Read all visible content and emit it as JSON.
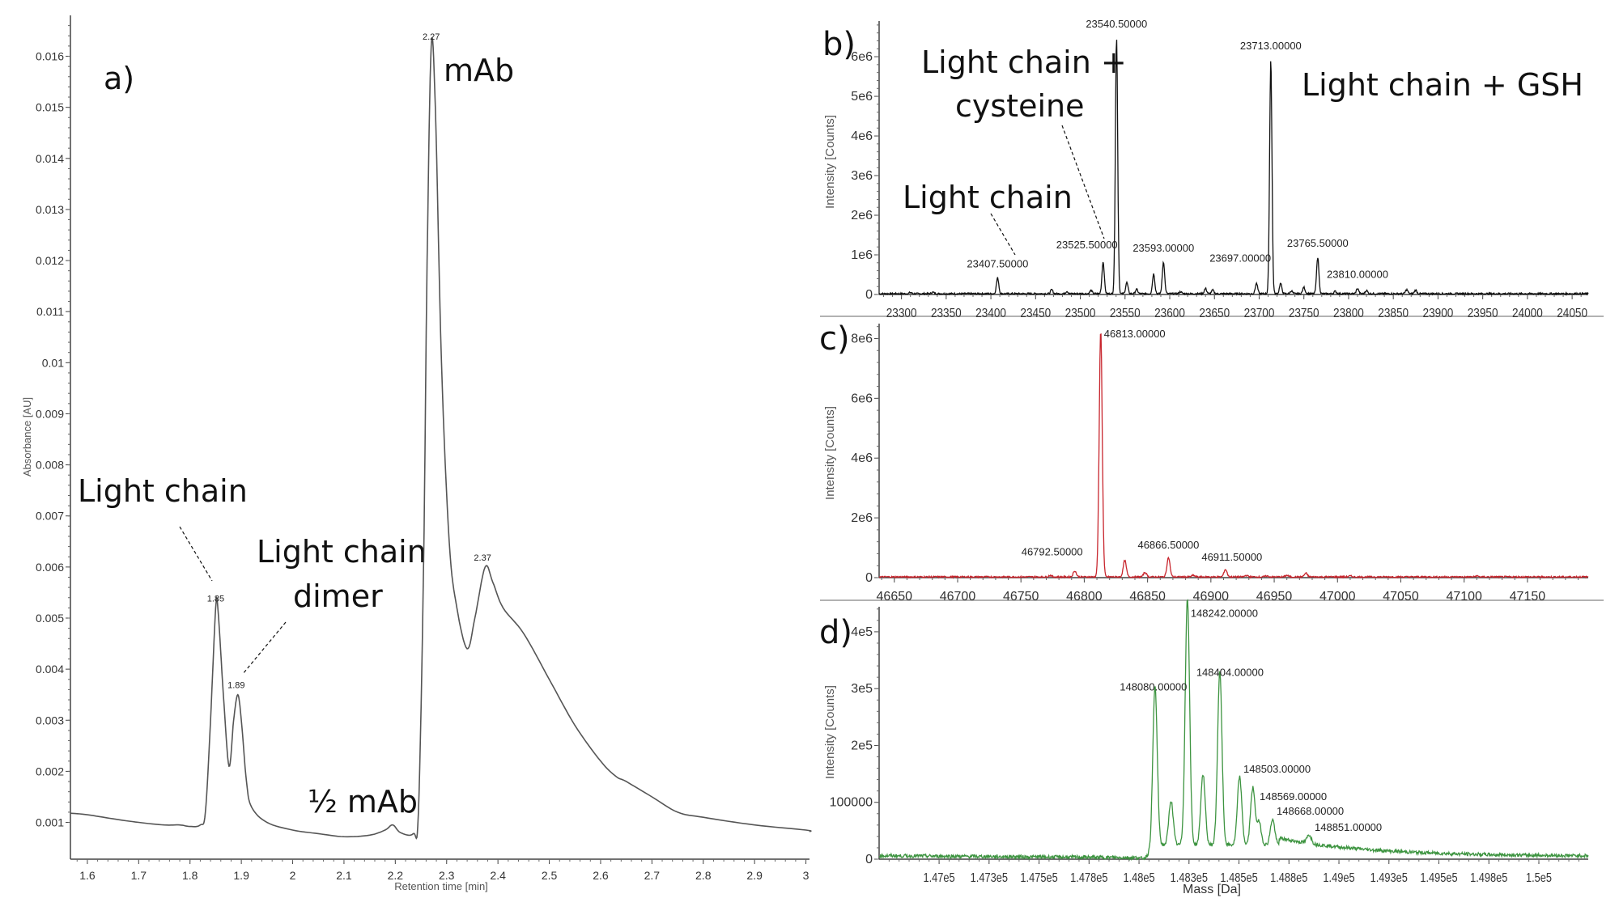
{
  "chart_data": [
    {
      "panel_label": "a)",
      "type": "line",
      "xlabel": "Retention time [min]",
      "ylabel": "Absorbance [AU]",
      "xlim": [
        1.567,
        3.007
      ],
      "ylim": [
        0.00028,
        0.0168
      ],
      "grid": false,
      "color": "#555555",
      "xticks": [
        1.6,
        1.7,
        1.8,
        1.9,
        2,
        2.1,
        2.2,
        2.3,
        2.4,
        2.5,
        2.6,
        2.7,
        2.8,
        2.9,
        3
      ],
      "xtick_labels": [
        "1.6",
        "1.7",
        "1.8",
        "1.9",
        "2",
        "2.1",
        "2.2",
        "2.3",
        "2.4",
        "2.5",
        "2.6",
        "2.7",
        "2.8",
        "2.9",
        "3"
      ],
      "yticks": [
        0.001,
        0.002,
        0.003,
        0.004,
        0.005,
        0.006,
        0.007,
        0.008,
        0.009,
        0.01,
        0.011,
        0.012,
        0.013,
        0.014,
        0.015,
        0.016
      ],
      "ytick_labels": [
        "0.001",
        "0.002",
        "0.003",
        "0.004",
        "0.005",
        "0.006",
        "0.007",
        "0.008",
        "0.009",
        "0.01",
        "0.011",
        "0.012",
        "0.013",
        "0.014",
        "0.015",
        "0.016"
      ],
      "x": [
        1.567,
        1.6,
        1.65,
        1.7,
        1.75,
        1.78,
        1.8,
        1.82,
        1.83,
        1.84,
        1.85,
        1.855,
        1.865,
        1.876,
        1.885,
        1.893,
        1.9,
        1.91,
        1.92,
        1.95,
        2.0,
        2.05,
        2.1,
        2.15,
        2.18,
        2.195,
        2.21,
        2.235,
        2.245,
        2.255,
        2.262,
        2.27,
        2.278,
        2.29,
        2.305,
        2.32,
        2.34,
        2.355,
        2.375,
        2.39,
        2.41,
        2.45,
        2.5,
        2.55,
        2.6,
        2.63,
        2.65,
        2.7,
        2.75,
        2.8,
        2.9,
        3.0,
        3.007
      ],
      "y": [
        0.00118,
        0.00115,
        0.00107,
        0.001,
        0.00095,
        0.00095,
        0.00092,
        0.00095,
        0.0012,
        0.003,
        0.0052,
        0.0051,
        0.0035,
        0.0021,
        0.003,
        0.0035,
        0.003,
        0.0018,
        0.0013,
        0.001,
        0.00085,
        0.00078,
        0.00072,
        0.00075,
        0.00085,
        0.00095,
        0.0008,
        0.00078,
        0.0012,
        0.006,
        0.012,
        0.0162,
        0.015,
        0.01,
        0.0065,
        0.0052,
        0.0044,
        0.005,
        0.006,
        0.0057,
        0.0052,
        0.0047,
        0.0038,
        0.0029,
        0.0022,
        0.0019,
        0.0018,
        0.0015,
        0.0012,
        0.0011,
        0.00095,
        0.00085,
        0.00082
      ],
      "peak_labels": [
        {
          "x": 1.85,
          "y": 0.0052,
          "text": "1.85"
        },
        {
          "x": 1.89,
          "y": 0.0035,
          "text": "1.89"
        },
        {
          "x": 2.27,
          "y": 0.0162,
          "text": "2.27"
        },
        {
          "x": 2.37,
          "y": 0.006,
          "text": "2.37"
        }
      ],
      "annotations": [
        {
          "text": "mAb"
        },
        {
          "text": "Light chain"
        },
        {
          "text": "Light chain",
          "text2": "dimer"
        },
        {
          "text": "½ mAb"
        }
      ]
    },
    {
      "panel_label": "b)",
      "type": "line",
      "xlabel": "",
      "ylabel": "Intensity [Counts]",
      "xlim": [
        23275,
        24068
      ],
      "ylim": [
        0,
        6900000
      ],
      "grid": false,
      "color": "#111111",
      "xticks": [
        23300,
        23350,
        23400,
        23450,
        23500,
        23550,
        23600,
        23650,
        23700,
        23750,
        23800,
        23850,
        23900,
        23950,
        24000,
        24050
      ],
      "xtick_labels": [
        "23300",
        "23350",
        "23400",
        "23450",
        "23500",
        "23550",
        "23600",
        "23650",
        "23700",
        "23750",
        "23800",
        "23850",
        "23900",
        "23950",
        "24000",
        "24050"
      ],
      "yticks": [
        0,
        1000000,
        2000000,
        3000000,
        4000000,
        5000000,
        6000000
      ],
      "ytick_labels": [
        "0",
        "1e6",
        "2e6",
        "3e6",
        "4e6",
        "5e6",
        "6e6"
      ],
      "peaks": [
        [
          23310,
          30000
        ],
        [
          23335,
          40000
        ],
        [
          23407.5,
          400000
        ],
        [
          23468,
          100000
        ],
        [
          23485,
          60000
        ],
        [
          23512,
          80000
        ],
        [
          23525.5,
          800000
        ],
        [
          23540.5,
          6450000
        ],
        [
          23552,
          280000
        ],
        [
          23563,
          110000
        ],
        [
          23582,
          500000
        ],
        [
          23593,
          800000
        ],
        [
          23612,
          50000
        ],
        [
          23640,
          130000
        ],
        [
          23648,
          90000
        ],
        [
          23697,
          260000
        ],
        [
          23713,
          5900000
        ],
        [
          23724,
          260000
        ],
        [
          23736,
          70000
        ],
        [
          23750,
          160000
        ],
        [
          23765.5,
          920000
        ],
        [
          23785,
          60000
        ],
        [
          23810,
          130000
        ],
        [
          23820,
          80000
        ],
        [
          23865,
          100000
        ],
        [
          23875,
          90000
        ]
      ],
      "peak_labels": [
        {
          "x": 23407.5,
          "y": 400000,
          "text": "23407.50000"
        },
        {
          "x": 23525.5,
          "y": 800000,
          "text": "23525.50000"
        },
        {
          "x": 23540.5,
          "y": 6450000,
          "text": "23540.50000"
        },
        {
          "x": 23593,
          "y": 800000,
          "text": "23593.00000"
        },
        {
          "x": 23697,
          "y": 260000,
          "text": "23697.00000"
        },
        {
          "x": 23713,
          "y": 5900000,
          "text": "23713.00000"
        },
        {
          "x": 23765.5,
          "y": 920000,
          "text": "23765.50000"
        },
        {
          "x": 23810,
          "y": 130000,
          "text": "23810.00000"
        }
      ],
      "annotations": [
        {
          "text": "Light chain +",
          "text2": "cysteine"
        },
        {
          "text": "Light chain"
        },
        {
          "text": "Light chain + GSH"
        }
      ]
    },
    {
      "panel_label": "c)",
      "type": "line",
      "xlabel": "",
      "ylabel": "Intensity [Counts]",
      "xlim": [
        46638,
        47198
      ],
      "ylim": [
        0,
        8500000
      ],
      "grid": false,
      "color": "#c8262e",
      "xticks": [
        46650,
        46700,
        46750,
        46800,
        46850,
        46900,
        46950,
        47000,
        47050,
        47100,
        47150
      ],
      "xtick_labels": [
        "46650",
        "46700",
        "46750",
        "46800",
        "46850",
        "46900",
        "46950",
        "47000",
        "47050",
        "47100",
        "47150"
      ],
      "yticks": [
        0,
        2000000,
        4000000,
        6000000,
        8000000
      ],
      "ytick_labels": [
        "0",
        "2e6",
        "4e6",
        "6e6",
        "8e6"
      ],
      "peaks": [
        [
          46773,
          50000
        ],
        [
          46792.5,
          200000
        ],
        [
          46813,
          8250000
        ],
        [
          46832,
          550000
        ],
        [
          46848,
          150000
        ],
        [
          46866.5,
          650000
        ],
        [
          46886,
          50000
        ],
        [
          46911.5,
          250000
        ],
        [
          46928,
          50000
        ],
        [
          46944,
          30000
        ],
        [
          46960,
          50000
        ],
        [
          46975,
          120000
        ],
        [
          47010,
          30000
        ],
        [
          47110,
          30000
        ]
      ],
      "peak_labels": [
        {
          "x": 46792.5,
          "y": 200000,
          "text": "46792.50000"
        },
        {
          "x": 46813,
          "y": 8250000,
          "text": "46813.00000"
        },
        {
          "x": 46866.5,
          "y": 650000,
          "text": "46866.50000"
        },
        {
          "x": 46911.5,
          "y": 250000,
          "text": "46911.50000"
        }
      ]
    },
    {
      "panel_label": "d)",
      "type": "line",
      "xlabel": "Mass [Da]",
      "ylabel": "Intensity [Counts]",
      "xlim": [
        146700,
        150247
      ],
      "ylim": [
        0,
        444000
      ],
      "grid": false,
      "color": "#3d9440",
      "xticks": [
        147000,
        147250,
        147500,
        147750,
        148000,
        148250,
        148500,
        148750,
        149000,
        149250,
        149500,
        149750,
        150000
      ],
      "xtick_labels": [
        "1.47e5",
        "1.473e5",
        "1.475e5",
        "1.478e5",
        "1.48e5",
        "1.483e5",
        "1.485e5",
        "1.488e5",
        "1.49e5",
        "1.493e5",
        "1.495e5",
        "1.498e5",
        "1.5e5"
      ],
      "yticks": [
        0,
        100000,
        200000,
        300000,
        400000
      ],
      "ytick_labels": [
        "0",
        "100000",
        "2e5",
        "3e5",
        "4e5"
      ],
      "peaks": [
        [
          148080,
          285000
        ],
        [
          148160,
          78000
        ],
        [
          148242,
          435000
        ],
        [
          148320,
          125000
        ],
        [
          148404,
          305000
        ],
        [
          148503,
          120000
        ],
        [
          148569,
          100000
        ],
        [
          148600,
          40000
        ],
        [
          148668,
          45000
        ],
        [
          148851,
          15000
        ]
      ],
      "peak_labels": [
        {
          "x": 148080,
          "y": 285000,
          "text": "148080.00000"
        },
        {
          "x": 148242,
          "y": 435000,
          "text": "148242.00000"
        },
        {
          "x": 148404,
          "y": 305000,
          "text": "148404.00000"
        },
        {
          "x": 148503,
          "y": 120000,
          "text": "148503.00000"
        },
        {
          "x": 148569,
          "y": 100000,
          "text": "148569.00000"
        },
        {
          "x": 148668,
          "y": 45000,
          "text": "148668.00000"
        },
        {
          "x": 148851,
          "y": 27000,
          "text": "148851.00000"
        }
      ]
    }
  ]
}
